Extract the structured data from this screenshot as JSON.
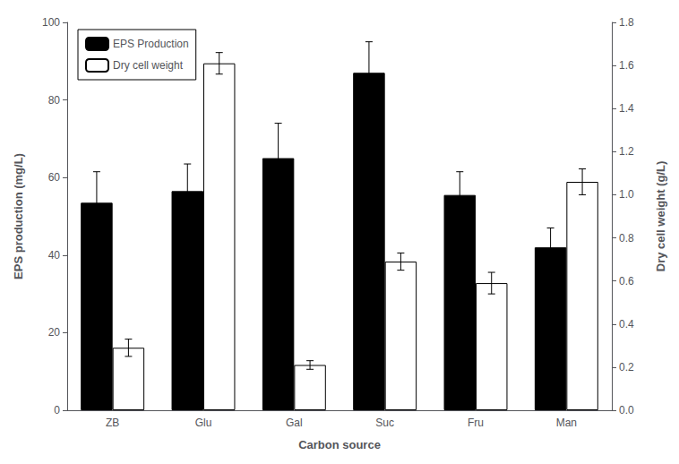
{
  "chart_data": {
    "type": "bar",
    "categories": [
      "ZB",
      "Glu",
      "Gal",
      "Suc",
      "Fru",
      "Man"
    ],
    "xlabel": "Carbon source",
    "ylabel": "EPS production (mg/L)",
    "y2label": "Dry cell weight (g/L)",
    "series": [
      {
        "name": "EPS Production",
        "color": "#000000",
        "values": [
          53.5,
          56.5,
          65.0,
          87.0,
          55.5,
          42.0
        ],
        "errors": [
          8.0,
          7.0,
          9.0,
          8.0,
          6.0,
          5.0
        ]
      },
      {
        "name": "Dry cell weight",
        "color": "#ffffff",
        "axis": "y2",
        "values": [
          0.29,
          1.61,
          0.21,
          0.69,
          0.59,
          1.06
        ],
        "errors": [
          0.04,
          0.05,
          0.02,
          0.04,
          0.05,
          0.06
        ]
      }
    ],
    "ylim": [
      0,
      100
    ],
    "yticks": [
      0,
      20,
      40,
      60,
      80,
      100
    ],
    "y2lim": [
      0.0,
      1.8
    ],
    "y2ticks": [
      {
        "value": 0,
        "label": "0.0"
      },
      0.2,
      0.4,
      0.6,
      0.8,
      {
        "value": 1,
        "label": "1.0"
      },
      1.2,
      1.4,
      1.6,
      1.8
    ],
    "grid": false,
    "legend": "upper left"
  }
}
